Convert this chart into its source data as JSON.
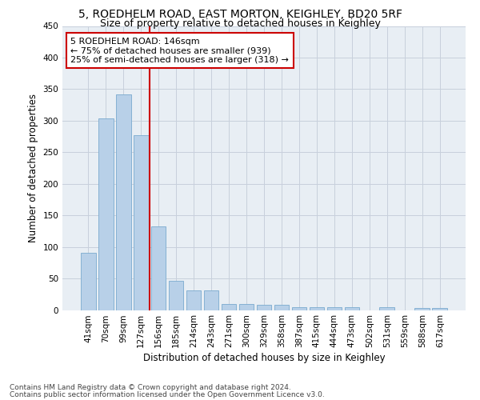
{
  "title_line1": "5, ROEDHELM ROAD, EAST MORTON, KEIGHLEY, BD20 5RF",
  "title_line2": "Size of property relative to detached houses in Keighley",
  "xlabel": "Distribution of detached houses by size in Keighley",
  "ylabel": "Number of detached properties",
  "categories": [
    "41sqm",
    "70sqm",
    "99sqm",
    "127sqm",
    "156sqm",
    "185sqm",
    "214sqm",
    "243sqm",
    "271sqm",
    "300sqm",
    "329sqm",
    "358sqm",
    "387sqm",
    "415sqm",
    "444sqm",
    "473sqm",
    "502sqm",
    "531sqm",
    "559sqm",
    "588sqm",
    "617sqm"
  ],
  "values": [
    91,
    303,
    341,
    277,
    133,
    46,
    31,
    31,
    10,
    10,
    8,
    8,
    4,
    4,
    4,
    4,
    0,
    4,
    0,
    3,
    3
  ],
  "bar_color": "#b8d0e8",
  "bar_edge_color": "#7aaace",
  "vline_color": "#cc0000",
  "annotation_box_text": "5 ROEDHELM ROAD: 146sqm\n← 75% of detached houses are smaller (939)\n25% of semi-detached houses are larger (318) →",
  "annotation_box_color": "#cc0000",
  "ylim": [
    0,
    450
  ],
  "yticks": [
    0,
    50,
    100,
    150,
    200,
    250,
    300,
    350,
    400,
    450
  ],
  "footer_line1": "Contains HM Land Registry data © Crown copyright and database right 2024.",
  "footer_line2": "Contains public sector information licensed under the Open Government Licence v3.0.",
  "background_color": "#e8eef4",
  "grid_color": "#c8d0dc",
  "title_fontsize": 10,
  "subtitle_fontsize": 9,
  "axis_label_fontsize": 8.5,
  "tick_fontsize": 7.5,
  "footer_fontsize": 6.5,
  "annotation_fontsize": 8
}
